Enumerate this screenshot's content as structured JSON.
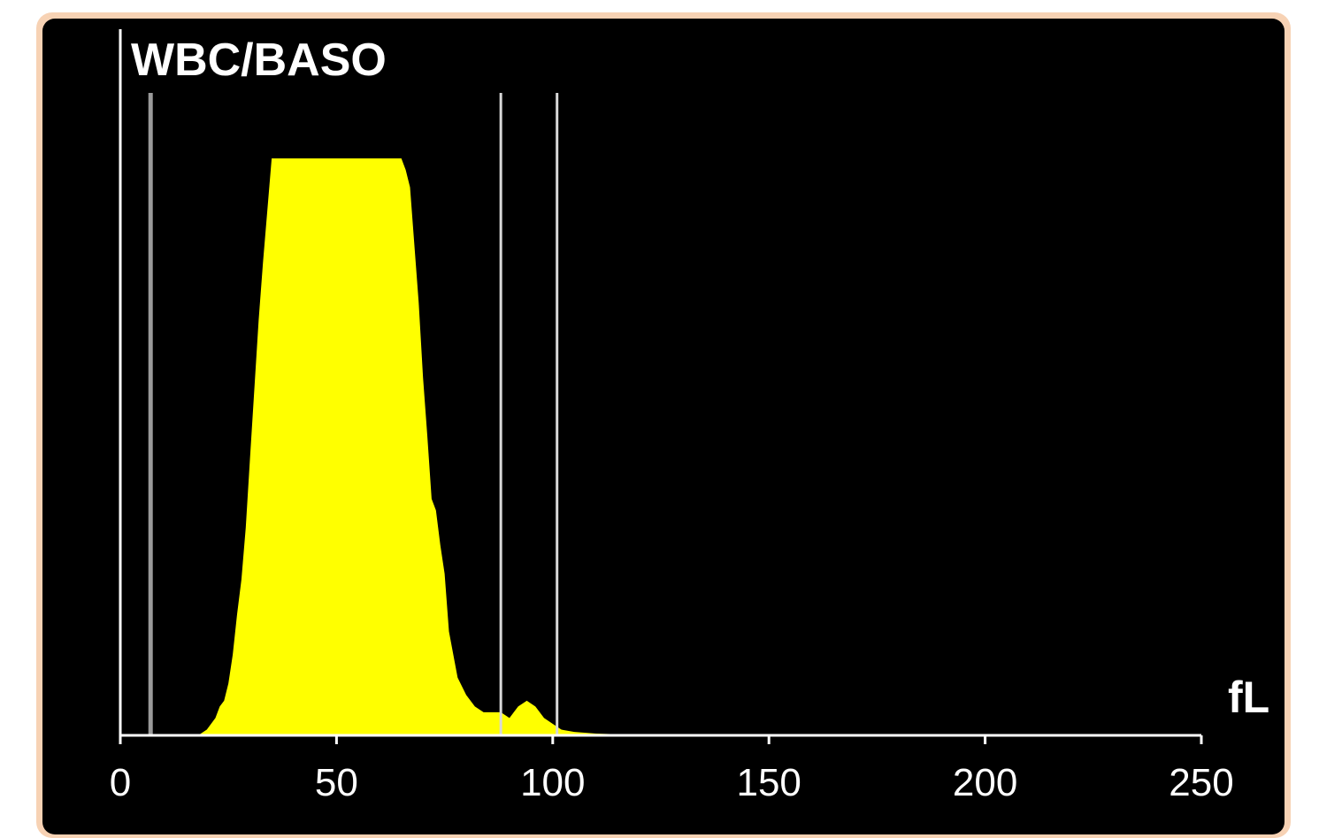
{
  "chart_data": {
    "type": "area",
    "title": "WBC/BASO",
    "xlabel": "fL",
    "ylabel": "",
    "xlim": [
      0,
      250
    ],
    "ylim": [
      0,
      100
    ],
    "x_ticks": [
      "0",
      "50",
      "100",
      "150",
      "200",
      "250"
    ],
    "grid": false,
    "series_color": "#ffff00",
    "discriminator_lines_fL": [
      7,
      88,
      101
    ],
    "x": [
      0,
      18,
      20,
      22,
      23,
      24,
      25,
      26,
      27,
      28,
      29,
      30,
      31,
      32,
      33,
      34,
      35,
      36,
      40,
      45,
      50,
      55,
      60,
      64,
      65,
      66,
      67,
      68,
      69,
      70,
      71,
      72,
      73,
      74,
      75,
      76,
      77,
      78,
      80,
      82,
      84,
      86,
      88,
      90,
      92,
      94,
      96,
      98,
      100,
      102,
      105,
      110,
      115,
      120,
      250
    ],
    "values": [
      0,
      0,
      1,
      3,
      5,
      6,
      9,
      14,
      21,
      27,
      36,
      48,
      60,
      72,
      82,
      91,
      100,
      100,
      100,
      100,
      100,
      100,
      100,
      100,
      100,
      98,
      95,
      85,
      75,
      62,
      52,
      41,
      39,
      33,
      28,
      18,
      14,
      10,
      7,
      5,
      4,
      4,
      4,
      3,
      5,
      6,
      5,
      3,
      2,
      1,
      0.6,
      0.3,
      0.2,
      0,
      0
    ]
  }
}
